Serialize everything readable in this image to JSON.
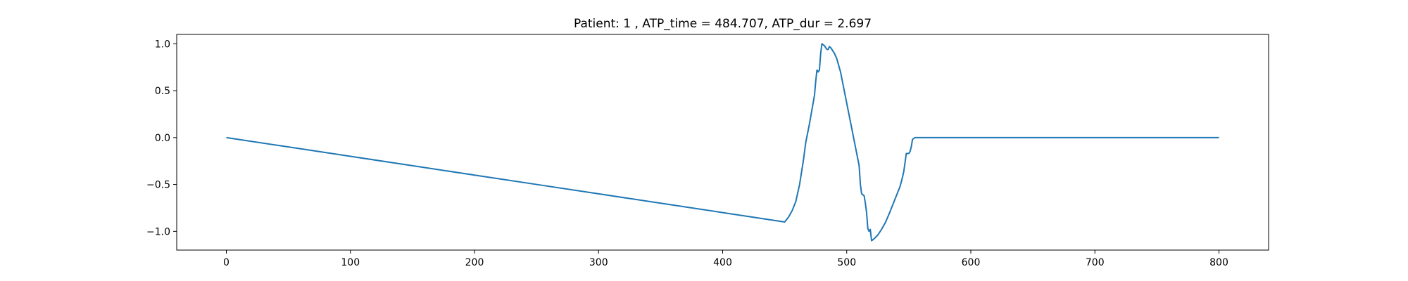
{
  "chart_data": {
    "type": "line",
    "title": "Patient: 1 , ATP_time = 484.707, ATP_dur = 2.697",
    "xlabel": "",
    "ylabel": "",
    "xlim": [
      -40,
      840
    ],
    "ylim": [
      -1.2,
      1.1
    ],
    "xticks": [
      "0",
      "100",
      "200",
      "300",
      "400",
      "500",
      "600",
      "700",
      "800"
    ],
    "yticks": [
      "1.0",
      "0.5",
      "0.0",
      "−0.5",
      "−1.0"
    ],
    "grid": false,
    "series": [
      {
        "color": "#1f77b4",
        "x": [
          0,
          50,
          100,
          150,
          200,
          250,
          300,
          350,
          400,
          450,
          453,
          456,
          459,
          462,
          465,
          467,
          470,
          472,
          474,
          475,
          476,
          477,
          478,
          479,
          480,
          482,
          484,
          485,
          486,
          487,
          488,
          490,
          492,
          495,
          498,
          501,
          504,
          507,
          510,
          511,
          512,
          514,
          515,
          516,
          517,
          518,
          519,
          520,
          522,
          525,
          528,
          531,
          534,
          537,
          540,
          543,
          545,
          546,
          548,
          550,
          551,
          552,
          553,
          555,
          600,
          650,
          700,
          750,
          800
        ],
        "y": [
          0.0,
          -0.1,
          -0.2,
          -0.3,
          -0.4,
          -0.5,
          -0.6,
          -0.7,
          -0.8,
          -0.9,
          -0.85,
          -0.78,
          -0.68,
          -0.5,
          -0.25,
          -0.05,
          0.15,
          0.3,
          0.45,
          0.6,
          0.72,
          0.7,
          0.72,
          0.9,
          1.0,
          0.98,
          0.94,
          0.94,
          0.97,
          0.96,
          0.94,
          0.9,
          0.84,
          0.7,
          0.5,
          0.3,
          0.1,
          -0.1,
          -0.3,
          -0.5,
          -0.6,
          -0.62,
          -0.7,
          -0.8,
          -0.97,
          -1.0,
          -0.98,
          -1.1,
          -1.08,
          -1.04,
          -0.98,
          -0.91,
          -0.82,
          -0.72,
          -0.62,
          -0.52,
          -0.42,
          -0.36,
          -0.17,
          -0.17,
          -0.15,
          -0.1,
          -0.02,
          0.0,
          0.0,
          0.0,
          0.0,
          0.0,
          0.0
        ]
      }
    ]
  }
}
